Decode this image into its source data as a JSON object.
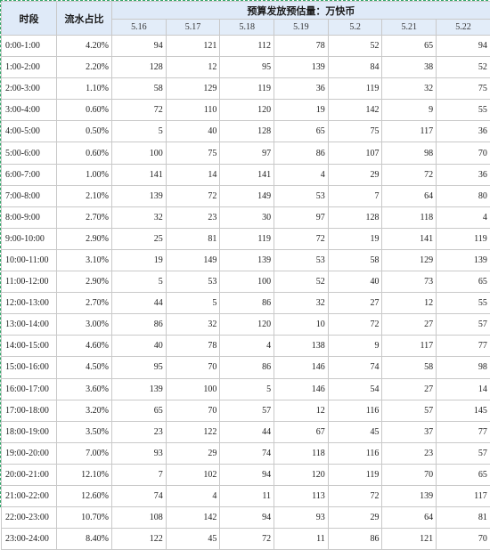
{
  "header": {
    "time_label": "时段",
    "share_label": "流水占比",
    "group_label": "预算发放预估量：万快币",
    "dates": [
      "5.16",
      "5.17",
      "5.18",
      "5.19",
      "5.2",
      "5.21",
      "5.22"
    ]
  },
  "rows": [
    {
      "time": "0:00-1:00",
      "share": "4.20%",
      "values": [
        "94",
        "121",
        "112",
        "78",
        "52",
        "65",
        "94"
      ]
    },
    {
      "time": "1:00-2:00",
      "share": "2.20%",
      "values": [
        "128",
        "12",
        "95",
        "139",
        "84",
        "38",
        "52"
      ]
    },
    {
      "time": "2:00-3:00",
      "share": "1.10%",
      "values": [
        "58",
        "129",
        "119",
        "36",
        "119",
        "32",
        "75"
      ]
    },
    {
      "time": "3:00-4:00",
      "share": "0.60%",
      "values": [
        "72",
        "110",
        "120",
        "19",
        "142",
        "9",
        "55"
      ]
    },
    {
      "time": "4:00-5:00",
      "share": "0.50%",
      "values": [
        "5",
        "40",
        "128",
        "65",
        "75",
        "117",
        "36"
      ]
    },
    {
      "time": "5:00-6:00",
      "share": "0.60%",
      "values": [
        "100",
        "75",
        "97",
        "86",
        "107",
        "98",
        "70"
      ]
    },
    {
      "time": "6:00-7:00",
      "share": "1.00%",
      "values": [
        "141",
        "14",
        "141",
        "4",
        "29",
        "72",
        "36"
      ]
    },
    {
      "time": "7:00-8:00",
      "share": "2.10%",
      "values": [
        "139",
        "72",
        "149",
        "53",
        "7",
        "64",
        "80"
      ]
    },
    {
      "time": "8:00-9:00",
      "share": "2.70%",
      "values": [
        "32",
        "23",
        "30",
        "97",
        "128",
        "118",
        "4"
      ]
    },
    {
      "time": "9:00-10:00",
      "share": "2.90%",
      "values": [
        "25",
        "81",
        "119",
        "72",
        "19",
        "141",
        "119"
      ]
    },
    {
      "time": "10:00-11:00",
      "share": "3.10%",
      "values": [
        "19",
        "149",
        "139",
        "53",
        "58",
        "129",
        "139"
      ]
    },
    {
      "time": "11:00-12:00",
      "share": "2.90%",
      "values": [
        "5",
        "53",
        "100",
        "52",
        "40",
        "73",
        "65"
      ]
    },
    {
      "time": "12:00-13:00",
      "share": "2.70%",
      "values": [
        "44",
        "5",
        "86",
        "32",
        "27",
        "12",
        "55"
      ]
    },
    {
      "time": "13:00-14:00",
      "share": "3.00%",
      "values": [
        "86",
        "32",
        "120",
        "10",
        "72",
        "27",
        "57"
      ]
    },
    {
      "time": "14:00-15:00",
      "share": "4.60%",
      "values": [
        "40",
        "78",
        "4",
        "138",
        "9",
        "117",
        "77"
      ]
    },
    {
      "time": "15:00-16:00",
      "share": "4.50%",
      "values": [
        "95",
        "70",
        "86",
        "146",
        "74",
        "58",
        "98"
      ]
    },
    {
      "time": "16:00-17:00",
      "share": "3.60%",
      "values": [
        "139",
        "100",
        "5",
        "146",
        "54",
        "27",
        "14"
      ]
    },
    {
      "time": "17:00-18:00",
      "share": "3.20%",
      "values": [
        "65",
        "70",
        "57",
        "12",
        "116",
        "57",
        "145"
      ]
    },
    {
      "time": "18:00-19:00",
      "share": "3.50%",
      "values": [
        "23",
        "122",
        "44",
        "67",
        "45",
        "37",
        "77"
      ]
    },
    {
      "time": "19:00-20:00",
      "share": "7.00%",
      "values": [
        "93",
        "29",
        "74",
        "118",
        "116",
        "23",
        "57"
      ]
    },
    {
      "time": "20:00-21:00",
      "share": "12.10%",
      "values": [
        "7",
        "102",
        "94",
        "120",
        "119",
        "70",
        "65"
      ]
    },
    {
      "time": "21:00-22:00",
      "share": "12.60%",
      "values": [
        "74",
        "4",
        "11",
        "113",
        "72",
        "139",
        "117"
      ]
    },
    {
      "time": "22:00-23:00",
      "share": "10.70%",
      "values": [
        "108",
        "142",
        "94",
        "93",
        "29",
        "64",
        "81"
      ]
    },
    {
      "time": "23:00-24:00",
      "share": "8.40%",
      "values": [
        "122",
        "45",
        "72",
        "11",
        "86",
        "121",
        "70"
      ]
    }
  ]
}
